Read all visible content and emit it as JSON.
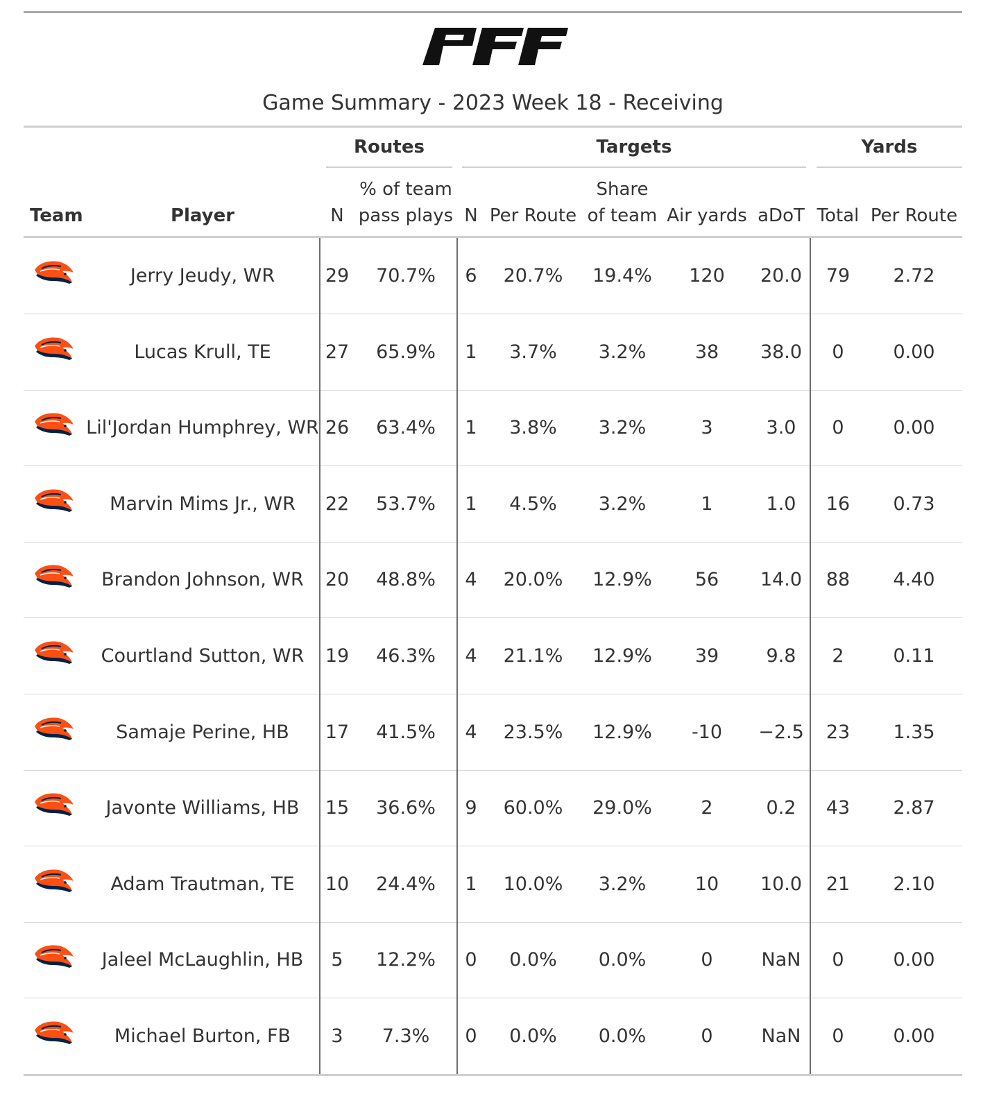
{
  "brand": {
    "logo_text": "PFF"
  },
  "title": "Game Summary - 2023 Week 18 - Receiving",
  "spanners": {
    "routes": "Routes",
    "targets": "Targets",
    "yards": "Yards"
  },
  "columns": {
    "team": "Team",
    "player": "Player",
    "routes_n": "N",
    "routes_pct_line1": "% of team",
    "routes_pct_line2": "pass plays",
    "targets_n": "N",
    "targets_per_route": "Per Route",
    "targets_share_line1": "Share",
    "targets_share_line2": "of team",
    "air_yards": "Air yards",
    "adot": "aDoT",
    "yards_total": "Total",
    "yards_per_route": "Per Route"
  },
  "team_logo_icon": "broncos-horse-head-icon",
  "colors": {
    "broncos_orange": "#fb4f14",
    "broncos_navy": "#002244"
  },
  "rows": [
    {
      "player": "Jerry Jeudy, WR",
      "routes_n": "29",
      "routes_pct": "70.7%",
      "targets_n": "6",
      "targets_per_route": "20.7%",
      "targets_share": "19.4%",
      "air_yards": "120",
      "adot": "20.0",
      "yards_total": "79",
      "yards_per_route": "2.72"
    },
    {
      "player": "Lucas Krull, TE",
      "routes_n": "27",
      "routes_pct": "65.9%",
      "targets_n": "1",
      "targets_per_route": "3.7%",
      "targets_share": "3.2%",
      "air_yards": "38",
      "adot": "38.0",
      "yards_total": "0",
      "yards_per_route": "0.00"
    },
    {
      "player": "Lil'Jordan Humphrey, WR",
      "routes_n": "26",
      "routes_pct": "63.4%",
      "targets_n": "1",
      "targets_per_route": "3.8%",
      "targets_share": "3.2%",
      "air_yards": "3",
      "adot": "3.0",
      "yards_total": "0",
      "yards_per_route": "0.00"
    },
    {
      "player": "Marvin Mims Jr., WR",
      "routes_n": "22",
      "routes_pct": "53.7%",
      "targets_n": "1",
      "targets_per_route": "4.5%",
      "targets_share": "3.2%",
      "air_yards": "1",
      "adot": "1.0",
      "yards_total": "16",
      "yards_per_route": "0.73"
    },
    {
      "player": "Brandon Johnson, WR",
      "routes_n": "20",
      "routes_pct": "48.8%",
      "targets_n": "4",
      "targets_per_route": "20.0%",
      "targets_share": "12.9%",
      "air_yards": "56",
      "adot": "14.0",
      "yards_total": "88",
      "yards_per_route": "4.40"
    },
    {
      "player": "Courtland Sutton, WR",
      "routes_n": "19",
      "routes_pct": "46.3%",
      "targets_n": "4",
      "targets_per_route": "21.1%",
      "targets_share": "12.9%",
      "air_yards": "39",
      "adot": "9.8",
      "yards_total": "2",
      "yards_per_route": "0.11"
    },
    {
      "player": "Samaje Perine, HB",
      "routes_n": "17",
      "routes_pct": "41.5%",
      "targets_n": "4",
      "targets_per_route": "23.5%",
      "targets_share": "12.9%",
      "air_yards": "-10",
      "adot": "−2.5",
      "yards_total": "23",
      "yards_per_route": "1.35"
    },
    {
      "player": "Javonte Williams, HB",
      "routes_n": "15",
      "routes_pct": "36.6%",
      "targets_n": "9",
      "targets_per_route": "60.0%",
      "targets_share": "29.0%",
      "air_yards": "2",
      "adot": "0.2",
      "yards_total": "43",
      "yards_per_route": "2.87"
    },
    {
      "player": "Adam Trautman, TE",
      "routes_n": "10",
      "routes_pct": "24.4%",
      "targets_n": "1",
      "targets_per_route": "10.0%",
      "targets_share": "3.2%",
      "air_yards": "10",
      "adot": "10.0",
      "yards_total": "21",
      "yards_per_route": "2.10"
    },
    {
      "player": "Jaleel McLaughlin, HB",
      "routes_n": "5",
      "routes_pct": "12.2%",
      "targets_n": "0",
      "targets_per_route": "0.0%",
      "targets_share": "0.0%",
      "air_yards": "0",
      "adot": "NaN",
      "yards_total": "0",
      "yards_per_route": "0.00"
    },
    {
      "player": "Michael Burton, FB",
      "routes_n": "3",
      "routes_pct": "7.3%",
      "targets_n": "0",
      "targets_per_route": "0.0%",
      "targets_share": "0.0%",
      "air_yards": "0",
      "adot": "NaN",
      "yards_total": "0",
      "yards_per_route": "0.00"
    }
  ]
}
